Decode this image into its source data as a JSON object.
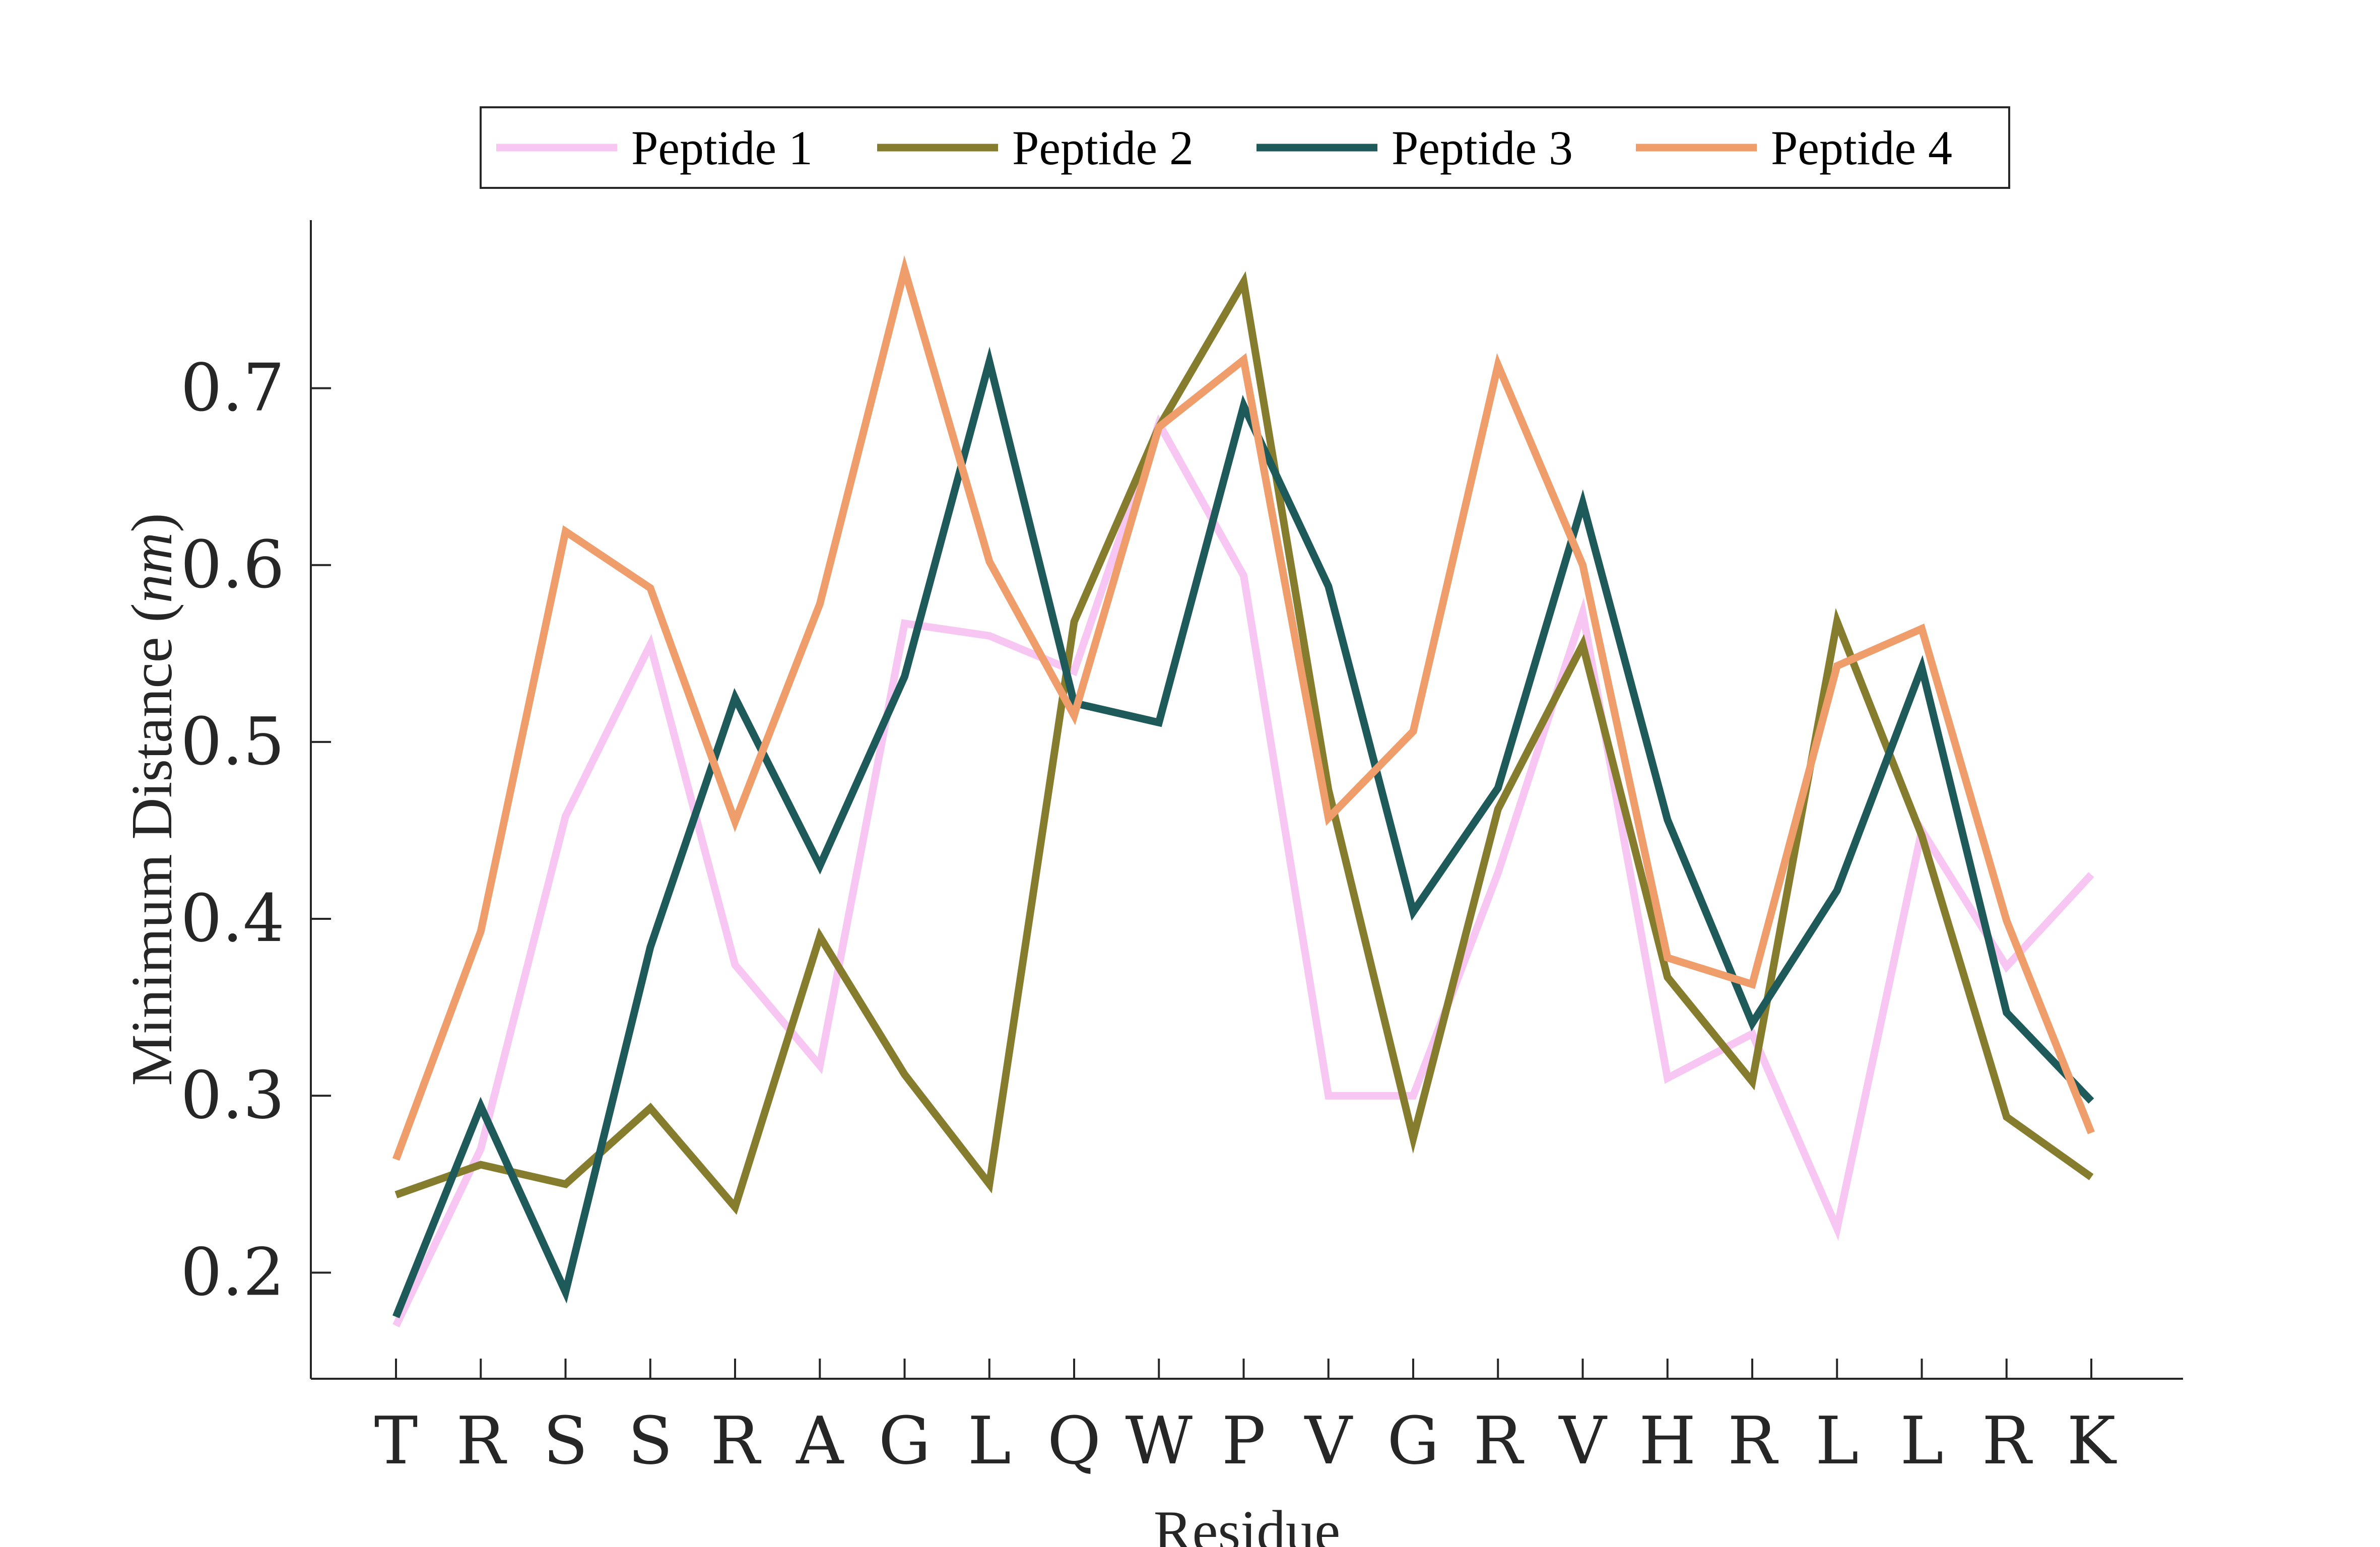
{
  "chart_data": {
    "type": "line",
    "xlabel": "Residue",
    "ylabel_main": "Minimum Distance (",
    "ylabel_unit": "nm",
    "ylabel_close": ")",
    "categories": [
      "T",
      "R",
      "S",
      "S",
      "R",
      "A",
      "G",
      "L",
      "Q",
      "W",
      "P",
      "V",
      "G",
      "R",
      "V",
      "H",
      "R",
      "L",
      "L",
      "R",
      "K"
    ],
    "ylim": [
      0.14,
      0.795
    ],
    "yticks": [
      0.2,
      0.3,
      0.4,
      0.5,
      0.6,
      0.7
    ],
    "ytick_labels": [
      "0.2",
      "0.3",
      "0.4",
      "0.5",
      "0.6",
      "0.7"
    ],
    "grid": false,
    "legend_position": "top-center",
    "series": [
      {
        "name": "Peptide 1",
        "color": "#f7c6f2",
        "values": [
          0.17,
          0.27,
          0.458,
          0.555,
          0.374,
          0.317,
          0.567,
          0.56,
          0.54,
          0.68,
          0.594,
          0.3,
          0.3,
          0.426,
          0.573,
          0.31,
          0.335,
          0.225,
          0.45,
          0.373,
          0.425
        ]
      },
      {
        "name": "Peptide 2",
        "color": "#857d2d",
        "values": [
          0.244,
          0.261,
          0.25,
          0.293,
          0.237,
          0.39,
          0.312,
          0.25,
          0.568,
          0.678,
          0.76,
          0.473,
          0.276,
          0.462,
          0.555,
          0.367,
          0.308,
          0.568,
          0.447,
          0.288,
          0.254
        ]
      },
      {
        "name": "Peptide 3",
        "color": "#1e5a5a",
        "values": [
          0.175,
          0.294,
          0.189,
          0.384,
          0.525,
          0.43,
          0.537,
          0.715,
          0.522,
          0.511,
          0.69,
          0.588,
          0.404,
          0.474,
          0.635,
          0.456,
          0.341,
          0.416,
          0.542,
          0.347,
          0.297
        ]
      },
      {
        "name": "Peptide 4",
        "color": "#ef9d6b",
        "values": [
          0.264,
          0.393,
          0.619,
          0.587,
          0.455,
          0.578,
          0.767,
          0.602,
          0.515,
          0.678,
          0.716,
          0.457,
          0.506,
          0.713,
          0.6,
          0.378,
          0.363,
          0.543,
          0.564,
          0.399,
          0.279
        ]
      }
    ]
  }
}
